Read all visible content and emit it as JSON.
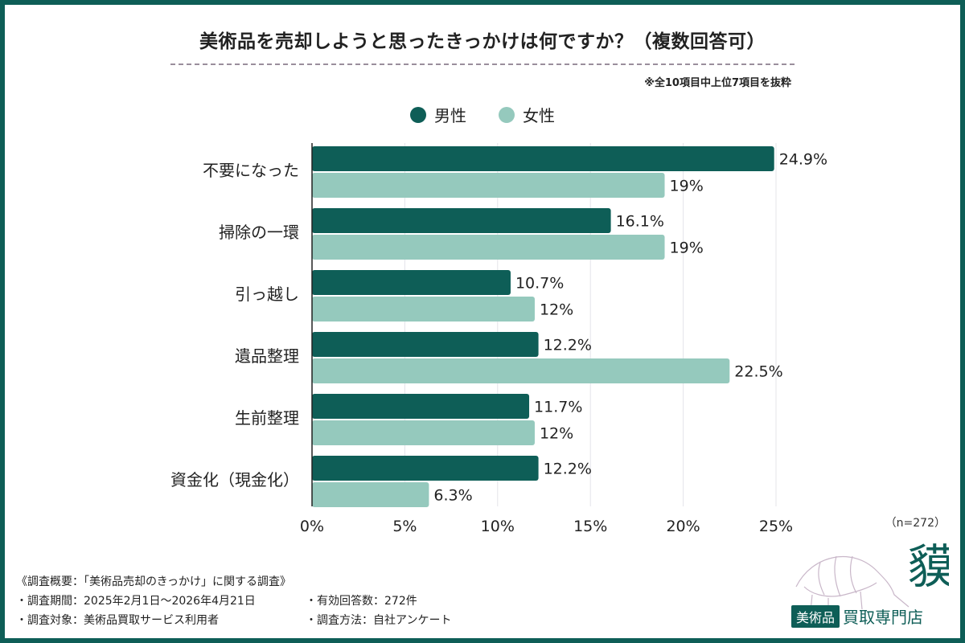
{
  "title": "美術品を売却しようと思ったきっかけは何ですか？（複数回答可）",
  "note": "※全10項目中上位7項目を抜粋",
  "n_label": "（n=272）",
  "colors": {
    "male": "#0e5e57",
    "female": "#95c9bd",
    "frame": "#0e5e57"
  },
  "legend": {
    "male": "男性",
    "female": "女性"
  },
  "chart_data": {
    "type": "bar",
    "orientation": "horizontal",
    "categories": [
      "不要になった",
      "掃除の一環",
      "引っ越し",
      "遺品整理",
      "生前整理",
      "資金化（現金化）"
    ],
    "series": [
      {
        "name": "男性",
        "values": [
          24.9,
          16.1,
          10.7,
          12.2,
          11.7,
          12.2
        ]
      },
      {
        "name": "女性",
        "values": [
          19,
          19,
          12,
          22.5,
          12,
          6.3
        ]
      }
    ],
    "data_labels": [
      [
        "24.9%",
        "16.1%",
        "10.7%",
        "12.2%",
        "11.7%",
        "12.2%"
      ],
      [
        "19%",
        "19%",
        "12%",
        "22.5%",
        "12%",
        "6.3%"
      ]
    ],
    "x_ticks": [
      "0%",
      "5%",
      "10%",
      "15%",
      "20%",
      "25%"
    ],
    "xlim": [
      0,
      25
    ],
    "grid": true,
    "legend_position": "top"
  },
  "survey": {
    "heading": "《調査概要：「美術品売却のきっかけ」に関する調査》",
    "period": "・調査期間：2025年2月1日〜2026年4月21日",
    "responses": "・有効回答数：272件",
    "target": "・調査対象：美術品買取サービス利用者",
    "method": "・調査方法：自社アンケート"
  },
  "logo": {
    "badge": "美術品",
    "text": "買取専門店",
    "mark": "貘"
  }
}
